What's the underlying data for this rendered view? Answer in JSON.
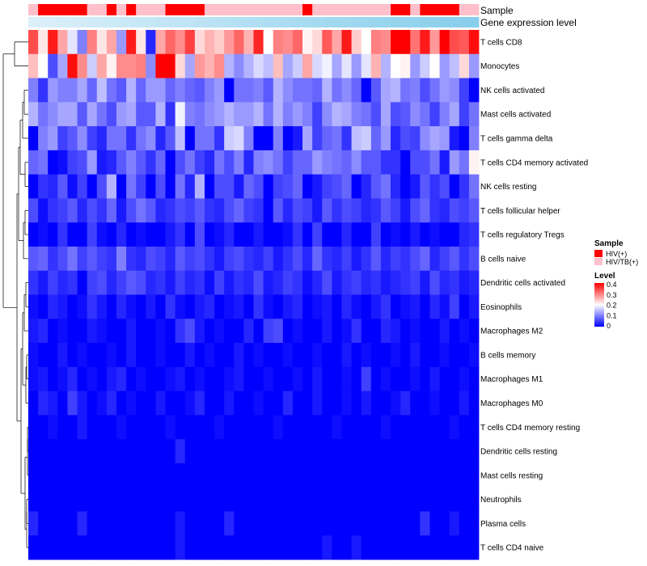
{
  "chart_data": {
    "type": "heatmap",
    "annotation_labels": {
      "sample": "Sample",
      "gene_expression": "Gene expression level"
    },
    "rows": [
      "T cells CD8",
      "Monocytes",
      "NK cells activated",
      "Mast cells activated",
      "T cells gamma delta",
      "T cells CD4 memory activated",
      "NK cells resting",
      "T cells follicular helper",
      "T cells regulatory  Tregs",
      "B cells naive",
      "Dendritic cells activated",
      "Eosinophils",
      "Macrophages M2",
      "B cells memory",
      "Macrophages M1",
      "Macrophages M0",
      "T cells CD4 memory resting",
      "Dendritic cells resting",
      "Mast cells resting",
      "Neutrophils",
      "Plasma cells",
      "T cells CD4 naive"
    ],
    "sample_groups": [
      "HIV/TB(+)",
      "HIV(+)",
      "HIV(+)",
      "HIV(+)",
      "HIV(+)",
      "HIV(+)",
      "HIV/TB(+)",
      "HIV/TB(+)",
      "HIV(+)",
      "HIV/TB(+)",
      "HIV(+)",
      "HIV/TB(+)",
      "HIV/TB(+)",
      "HIV/TB(+)",
      "HIV(+)",
      "HIV(+)",
      "HIV(+)",
      "HIV(+)",
      "HIV/TB(+)",
      "HIV/TB(+)",
      "HIV/TB(+)",
      "HIV/TB(+)",
      "HIV/TB(+)",
      "HIV/TB(+)",
      "HIV/TB(+)",
      "HIV/TB(+)",
      "HIV/TB(+)",
      "HIV/TB(+)",
      "HIV(+)",
      "HIV/TB(+)",
      "HIV/TB(+)",
      "HIV/TB(+)",
      "HIV/TB(+)",
      "HIV/TB(+)",
      "HIV/TB(+)",
      "HIV/TB(+)",
      "HIV/TB(+)",
      "HIV(+)",
      "HIV(+)",
      "HIV/TB(+)",
      "HIV(+)",
      "HIV(+)",
      "HIV(+)",
      "HIV(+)",
      "HIV/TB(+)",
      "HIV/TB(+)"
    ],
    "values": [
      [
        0.34,
        0.22,
        0.38,
        0.27,
        0.18,
        0.1,
        0.3,
        0.22,
        0.27,
        0.12,
        0.38,
        0.22,
        0.03,
        0.27,
        0.32,
        0.29,
        0.35,
        0.23,
        0.26,
        0.24,
        0.28,
        0.32,
        0.26,
        0.37,
        0.2,
        0.3,
        0.29,
        0.32,
        0.21,
        0.23,
        0.33,
        0.27,
        0.38,
        0.24,
        0.2,
        0.3,
        0.29,
        0.4,
        0.4,
        0.31,
        0.38,
        0.28,
        0.4,
        0.34,
        0.33,
        0.39
      ],
      [
        0.25,
        0.2,
        0.06,
        0.13,
        0.39,
        0.29,
        0.16,
        0.27,
        0.21,
        0.29,
        0.29,
        0.3,
        0.11,
        0.4,
        0.4,
        0.23,
        0.13,
        0.28,
        0.26,
        0.29,
        0.14,
        0.11,
        0.14,
        0.17,
        0.15,
        0.25,
        0.13,
        0.16,
        0.27,
        0.17,
        0.19,
        0.13,
        0.18,
        0.12,
        0.18,
        0.26,
        0.14,
        0.2,
        0.21,
        0.12,
        0.16,
        0.2,
        0.12,
        0.15,
        0.23,
        0.12
      ],
      [
        0.1,
        0.04,
        0.12,
        0.1,
        0.1,
        0.13,
        0.08,
        0.15,
        0.09,
        0.07,
        0.14,
        0.08,
        0.12,
        0.12,
        0.08,
        0.1,
        0.08,
        0.07,
        0.1,
        0.12,
        0.0,
        0.09,
        0.09,
        0.1,
        0.07,
        0.14,
        0.11,
        0.09,
        0.09,
        0.08,
        0.14,
        0.09,
        0.11,
        0.08,
        0.0,
        0.07,
        0.13,
        0.14,
        0.09,
        0.1,
        0.06,
        0.09,
        0.12,
        0.11,
        0.05,
        0.0
      ],
      [
        0.14,
        0.09,
        0.11,
        0.13,
        0.13,
        0.07,
        0.13,
        0.09,
        0.06,
        0.12,
        0.13,
        0.07,
        0.07,
        0.14,
        0.04,
        0.19,
        0.1,
        0.09,
        0.11,
        0.12,
        0.14,
        0.12,
        0.12,
        0.14,
        0.09,
        0.14,
        0.1,
        0.12,
        0.1,
        0.05,
        0.11,
        0.14,
        0.13,
        0.1,
        0.09,
        0.06,
        0.13,
        0.06,
        0.07,
        0.11,
        0.09,
        0.05,
        0.1,
        0.13,
        0.05,
        0.09
      ],
      [
        0.0,
        0.1,
        0.12,
        0.05,
        0.07,
        0.11,
        0.05,
        0.03,
        0.09,
        0.09,
        0.04,
        0.09,
        0.11,
        0.03,
        0.07,
        0.15,
        0.0,
        0.09,
        0.09,
        0.04,
        0.16,
        0.17,
        0.1,
        0.0,
        0.0,
        0.1,
        0.0,
        0.02,
        0.13,
        0.05,
        0.08,
        0.09,
        0.04,
        0.15,
        0.16,
        0.08,
        0.12,
        0.03,
        0.06,
        0.05,
        0.11,
        0.13,
        0.12,
        0.02,
        0.0,
        0.1
      ],
      [
        0.08,
        0.09,
        0.0,
        0.01,
        0.05,
        0.06,
        0.12,
        0.02,
        0.03,
        0.07,
        0.1,
        0.07,
        0.04,
        0.08,
        0.0,
        0.06,
        0.09,
        0.05,
        0.03,
        0.09,
        0.06,
        0.1,
        0.03,
        0.1,
        0.11,
        0.09,
        0.05,
        0.08,
        0.08,
        0.12,
        0.1,
        0.09,
        0.08,
        0.11,
        0.07,
        0.07,
        0.04,
        0.04,
        0.0,
        0.06,
        0.06,
        0.09,
        0.02,
        0.12,
        0.09,
        0.21
      ],
      [
        0.0,
        0.04,
        0.03,
        0.07,
        0.01,
        0.05,
        0.0,
        0.06,
        0.14,
        0.0,
        0.09,
        0.05,
        0.0,
        0.06,
        0.0,
        0.09,
        0.03,
        0.14,
        0.0,
        0.06,
        0.06,
        0.02,
        0.08,
        0.06,
        0.0,
        0.05,
        0.06,
        0.08,
        0.0,
        0.02,
        0.05,
        0.06,
        0.08,
        0.0,
        0.03,
        0.07,
        0.09,
        0.03,
        0.0,
        0.02,
        0.07,
        0.04,
        0.06,
        0.0,
        0.04,
        0.09
      ],
      [
        0.06,
        0.01,
        0.04,
        0.05,
        0.07,
        0.03,
        0.06,
        0.04,
        0.08,
        0.02,
        0.06,
        0.09,
        0.07,
        0.03,
        0.04,
        0.06,
        0.05,
        0.07,
        0.04,
        0.03,
        0.06,
        0.08,
        0.05,
        0.04,
        0.0,
        0.07,
        0.03,
        0.06,
        0.05,
        0.02,
        0.07,
        0.04,
        0.06,
        0.05,
        0.03,
        0.04,
        0.07,
        0.05,
        0.02,
        0.06,
        0.08,
        0.04,
        0.03,
        0.06,
        0.05,
        0.07
      ],
      [
        0.0,
        0.01,
        0.0,
        0.04,
        0.0,
        0.0,
        0.05,
        0.01,
        0.0,
        0.03,
        0.0,
        0.01,
        0.0,
        0.0,
        0.02,
        0.04,
        0.0,
        0.06,
        0.0,
        0.01,
        0.03,
        0.0,
        0.0,
        0.02,
        0.0,
        0.0,
        0.01,
        0.04,
        0.0,
        0.05,
        0.0,
        0.0,
        0.03,
        0.0,
        0.0,
        0.05,
        0.0,
        0.01,
        0.0,
        0.02,
        0.0,
        0.01,
        0.0,
        0.0,
        0.03,
        0.04
      ],
      [
        0.07,
        0.08,
        0.04,
        0.06,
        0.09,
        0.05,
        0.07,
        0.05,
        0.04,
        0.1,
        0.04,
        0.03,
        0.06,
        0.05,
        0.03,
        0.07,
        0.05,
        0.06,
        0.04,
        0.02,
        0.05,
        0.06,
        0.04,
        0.03,
        0.05,
        0.02,
        0.04,
        0.06,
        0.03,
        0.08,
        0.04,
        0.03,
        0.05,
        0.02,
        0.04,
        0.07,
        0.03,
        0.05,
        0.04,
        0.06,
        0.08,
        0.03,
        0.05,
        0.07,
        0.04,
        0.06
      ],
      [
        0.04,
        0.02,
        0.05,
        0.03,
        0.04,
        0.0,
        0.05,
        0.06,
        0.03,
        0.05,
        0.07,
        0.06,
        0.03,
        0.04,
        0.02,
        0.05,
        0.03,
        0.04,
        0.01,
        0.05,
        0.02,
        0.04,
        0.03,
        0.06,
        0.02,
        0.03,
        0.05,
        0.04,
        0.01,
        0.03,
        0.06,
        0.02,
        0.04,
        0.05,
        0.03,
        0.04,
        0.02,
        0.03,
        0.04,
        0.05,
        0.02,
        0.06,
        0.03,
        0.04,
        0.02,
        0.03
      ],
      [
        0.01,
        0.0,
        0.03,
        0.02,
        0.0,
        0.01,
        0.04,
        0.02,
        0.0,
        0.03,
        0.01,
        0.0,
        0.02,
        0.0,
        0.04,
        0.01,
        0.0,
        0.02,
        0.03,
        0.0,
        0.01,
        0.02,
        0.0,
        0.04,
        0.01,
        0.0,
        0.02,
        0.03,
        0.0,
        0.01,
        0.02,
        0.0,
        0.03,
        0.01,
        0.0,
        0.02,
        0.04,
        0.0,
        0.01,
        0.02,
        0.0,
        0.03,
        0.01,
        0.05,
        0.0,
        0.02
      ],
      [
        0.02,
        0.03,
        0.0,
        0.01,
        0.0,
        0.0,
        0.02,
        0.01,
        0.0,
        0.0,
        0.02,
        0.0,
        0.0,
        0.01,
        0.0,
        0.04,
        0.06,
        0.02,
        0.0,
        0.01,
        0.0,
        0.0,
        0.03,
        0.0,
        0.05,
        0.06,
        0.0,
        0.01,
        0.0,
        0.0,
        0.02,
        0.0,
        0.01,
        0.04,
        0.0,
        0.0,
        0.03,
        0.02,
        0.0,
        0.01,
        0.0,
        0.0,
        0.02,
        0.0,
        0.01,
        0.0
      ],
      [
        0.01,
        0.0,
        0.0,
        0.02,
        0.0,
        0.01,
        0.0,
        0.0,
        0.01,
        0.0,
        0.02,
        0.0,
        0.0,
        0.01,
        0.0,
        0.0,
        0.02,
        0.0,
        0.01,
        0.0,
        0.0,
        0.02,
        0.0,
        0.01,
        0.0,
        0.0,
        0.01,
        0.0,
        0.0,
        0.01,
        0.0,
        0.0,
        0.02,
        0.0,
        0.01,
        0.0,
        0.0,
        0.01,
        0.0,
        0.02,
        0.0,
        0.0,
        0.01,
        0.0,
        0.0,
        0.01
      ],
      [
        0.01,
        0.02,
        0.0,
        0.01,
        0.03,
        0.0,
        0.01,
        0.0,
        0.02,
        0.03,
        0.0,
        0.01,
        0.0,
        0.0,
        0.01,
        0.02,
        0.0,
        0.01,
        0.0,
        0.0,
        0.01,
        0.02,
        0.0,
        0.0,
        0.01,
        0.0,
        0.0,
        0.01,
        0.0,
        0.02,
        0.0,
        0.0,
        0.01,
        0.0,
        0.05,
        0.0,
        0.01,
        0.0,
        0.0,
        0.01,
        0.0,
        0.02,
        0.0,
        0.0,
        0.01,
        0.0
      ],
      [
        0.0,
        0.03,
        0.02,
        0.0,
        0.05,
        0.02,
        0.0,
        0.01,
        0.03,
        0.0,
        0.01,
        0.0,
        0.0,
        0.02,
        0.0,
        0.0,
        0.01,
        0.03,
        0.0,
        0.0,
        0.02,
        0.0,
        0.0,
        0.01,
        0.0,
        0.0,
        0.03,
        0.0,
        0.0,
        0.02,
        0.0,
        0.0,
        0.01,
        0.0,
        0.02,
        0.0,
        0.0,
        0.01,
        0.03,
        0.0,
        0.0,
        0.01,
        0.0,
        0.0,
        0.02,
        0.0
      ],
      [
        0.0,
        0.0,
        0.01,
        0.0,
        0.0,
        0.02,
        0.0,
        0.0,
        0.0,
        0.01,
        0.0,
        0.0,
        0.0,
        0.0,
        0.01,
        0.0,
        0.0,
        0.0,
        0.0,
        0.01,
        0.0,
        0.0,
        0.0,
        0.0,
        0.0,
        0.01,
        0.0,
        0.0,
        0.0,
        0.0,
        0.0,
        0.01,
        0.0,
        0.0,
        0.0,
        0.0,
        0.01,
        0.0,
        0.0,
        0.0,
        0.0,
        0.0,
        0.0,
        0.01,
        0.0,
        0.0
      ],
      [
        0.0,
        0.0,
        0.0,
        0.0,
        0.0,
        0.0,
        0.0,
        0.0,
        0.0,
        0.0,
        0.0,
        0.0,
        0.0,
        0.0,
        0.0,
        0.03,
        0.0,
        0.0,
        0.0,
        0.0,
        0.0,
        0.0,
        0.0,
        0.0,
        0.0,
        0.0,
        0.0,
        0.0,
        0.0,
        0.0,
        0.0,
        0.0,
        0.0,
        0.0,
        0.0,
        0.0,
        0.0,
        0.0,
        0.0,
        0.0,
        0.0,
        0.0,
        0.0,
        0.0,
        0.0,
        0.0
      ],
      [
        0.0,
        0.0,
        0.0,
        0.0,
        0.0,
        0.0,
        0.0,
        0.0,
        0.0,
        0.0,
        0.0,
        0.0,
        0.0,
        0.0,
        0.0,
        0.0,
        0.0,
        0.0,
        0.0,
        0.0,
        0.0,
        0.0,
        0.0,
        0.0,
        0.0,
        0.0,
        0.0,
        0.0,
        0.0,
        0.0,
        0.0,
        0.0,
        0.0,
        0.0,
        0.0,
        0.0,
        0.0,
        0.0,
        0.0,
        0.0,
        0.0,
        0.0,
        0.0,
        0.0,
        0.0,
        0.0
      ],
      [
        0.0,
        0.0,
        0.0,
        0.0,
        0.0,
        0.0,
        0.0,
        0.0,
        0.0,
        0.0,
        0.0,
        0.0,
        0.0,
        0.0,
        0.0,
        0.0,
        0.0,
        0.0,
        0.0,
        0.0,
        0.0,
        0.0,
        0.0,
        0.0,
        0.0,
        0.0,
        0.0,
        0.0,
        0.0,
        0.0,
        0.0,
        0.0,
        0.0,
        0.0,
        0.0,
        0.0,
        0.0,
        0.0,
        0.0,
        0.0,
        0.0,
        0.0,
        0.0,
        0.0,
        0.0,
        0.0
      ],
      [
        0.03,
        0.0,
        0.0,
        0.0,
        0.0,
        0.03,
        0.0,
        0.0,
        0.0,
        0.0,
        0.0,
        0.0,
        0.0,
        0.0,
        0.0,
        0.02,
        0.0,
        0.0,
        0.0,
        0.0,
        0.03,
        0.0,
        0.0,
        0.0,
        0.0,
        0.0,
        0.0,
        0.0,
        0.0,
        0.0,
        0.0,
        0.0,
        0.0,
        0.0,
        0.0,
        0.0,
        0.0,
        0.0,
        0.0,
        0.0,
        0.04,
        0.0,
        0.0,
        0.02,
        0.0,
        0.0
      ],
      [
        0.0,
        0.0,
        0.0,
        0.0,
        0.0,
        0.0,
        0.0,
        0.0,
        0.0,
        0.0,
        0.0,
        0.0,
        0.0,
        0.0,
        0.0,
        0.02,
        0.0,
        0.0,
        0.0,
        0.0,
        0.0,
        0.0,
        0.0,
        0.0,
        0.0,
        0.0,
        0.0,
        0.0,
        0.0,
        0.0,
        0.02,
        0.0,
        0.0,
        0.02,
        0.0,
        0.0,
        0.0,
        0.0,
        0.0,
        0.0,
        0.0,
        0.0,
        0.0,
        0.0,
        0.0,
        0.0
      ]
    ],
    "gene_expression_level": "uniform light blue gradient",
    "legend": {
      "sample_title": "Sample",
      "sample_entries": [
        {
          "label": "HIV(+)",
          "color": "#ff0000"
        },
        {
          "label": "HIV/TB(+)",
          "color": "#ffc0cb"
        }
      ],
      "level_title": "Level",
      "level_ticks": [
        "0.4",
        "0.3",
        "0.2",
        "0.1",
        "0"
      ],
      "level_range": [
        0,
        0.4
      ],
      "placement": "right"
    },
    "colors": {
      "low": "#0000ff",
      "mid": "#ffffff",
      "high": "#ff0000",
      "expression_bar": "#87ceeb"
    }
  }
}
